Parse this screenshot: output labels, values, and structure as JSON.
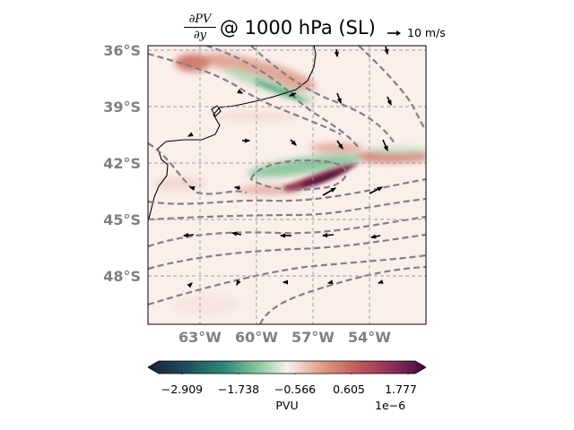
{
  "title": {
    "numerator": "∂PV",
    "denominator": "∂y",
    "text": "@ 1000 hPa (SL)"
  },
  "quiver_key": {
    "label": "10 m/s",
    "icon": "arrow-right-icon"
  },
  "map": {
    "lat_labels": [
      "36°S",
      "39°S",
      "42°S",
      "45°S",
      "48°S"
    ],
    "lon_labels": [
      "63°W",
      "60°W",
      "57°W",
      "54°W"
    ],
    "extent": {
      "lon": [
        -65.8,
        -50.8
      ],
      "lat": [
        -50.5,
        -35.9
      ]
    },
    "gridlines": true,
    "field_colormap": "diverging (curl): dark teal → green → white → red → purple"
  },
  "colorbar": {
    "ticks": [
      "−2.909",
      "−1.738",
      "−0.566",
      "0.605",
      "1.777"
    ],
    "label": "PVU",
    "exponent": "1e−6",
    "colors": [
      "#1b1f3c",
      "#1d4f5e",
      "#2f8a78",
      "#8fc79f",
      "#f5f2ee",
      "#e0a08c",
      "#c25a5a",
      "#8e2d5a",
      "#3c0a3f"
    ]
  }
}
